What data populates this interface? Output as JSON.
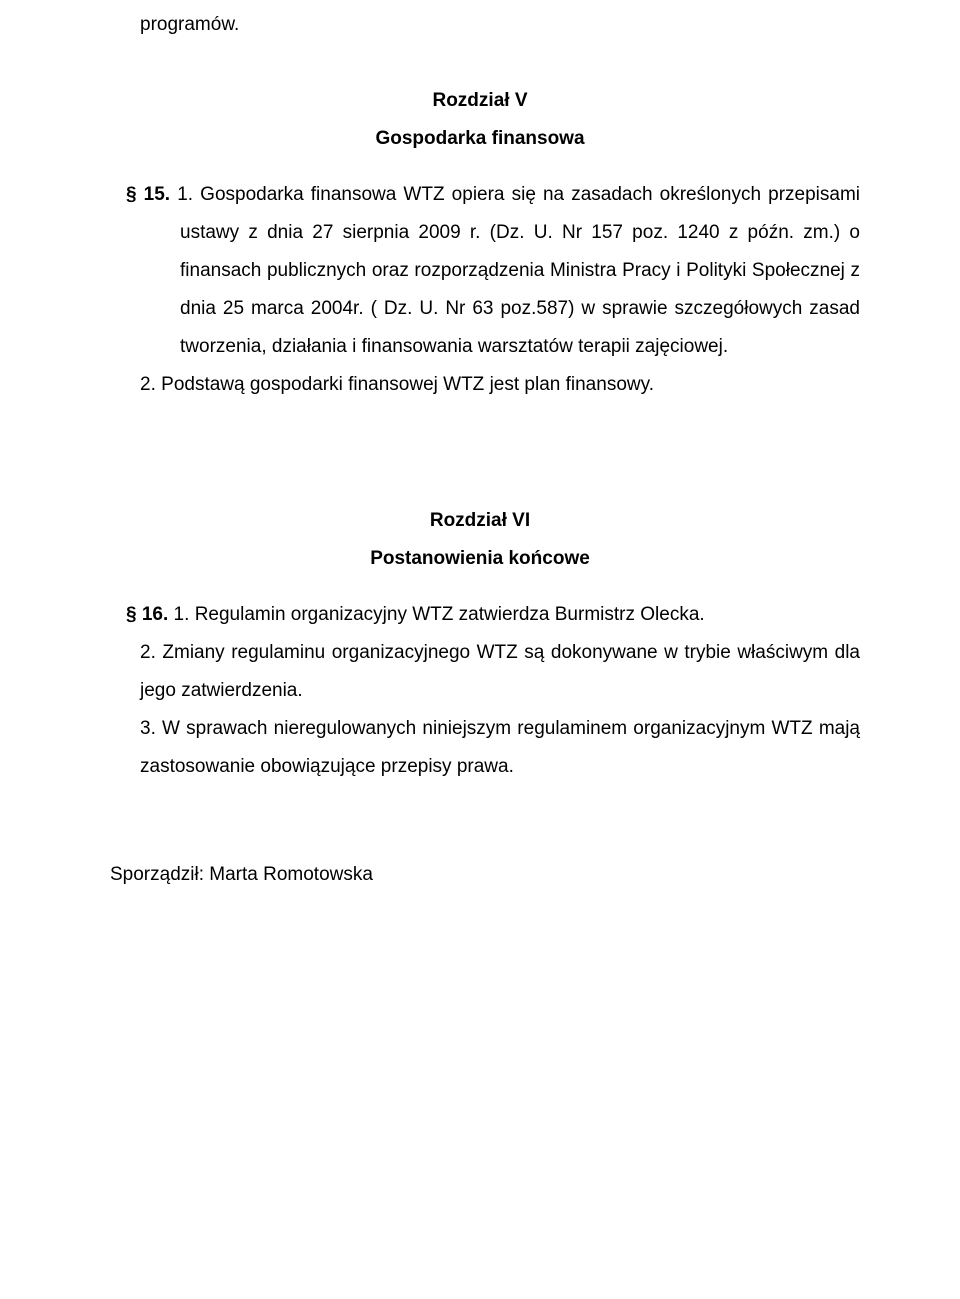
{
  "doc": {
    "continuation": "programów.",
    "chapter5": {
      "heading": "Rozdział V",
      "title": "Gospodarka finansowa",
      "s15": {
        "marker": "§ 15.",
        "p1_num": "1.",
        "p1_text": "Gospodarka finansowa WTZ opiera się na zasadach określonych przepisami  ustawy z dnia 27 sierpnia 2009 r. (Dz. U. Nr 157 poz. 1240 z późn. zm.) o finansach publicznych oraz rozporządzenia Ministra Pracy i Polityki Społecznej z dnia 25 marca 2004r. ( Dz. U. Nr 63 poz.587) w sprawie szczegółowych zasad tworzenia, działania i finansowania warsztatów terapii zajęciowej.",
        "p2_num": "2.",
        "p2_text": "Podstawą gospodarki finansowej WTZ jest plan finansowy."
      }
    },
    "chapter6": {
      "heading": "Rozdział VI",
      "title": "Postanowienia końcowe",
      "s16": {
        "marker": "§ 16.",
        "p1_num": "1.",
        "p1_text": "Regulamin organizacyjny WTZ zatwierdza Burmistrz  Olecka.",
        "p2_num": "2.",
        "p2_text": "Zmiany regulaminu organizacyjnego WTZ są dokonywane w trybie właściwym dla jego zatwierdzenia.",
        "p3_num": "3.",
        "p3_text": "W sprawach nieregulowanych niniejszym regulaminem organizacyjnym WTZ mają zastosowanie obowiązujące przepisy prawa."
      }
    },
    "author_label": "Sporządził: Marta Romotowska"
  }
}
